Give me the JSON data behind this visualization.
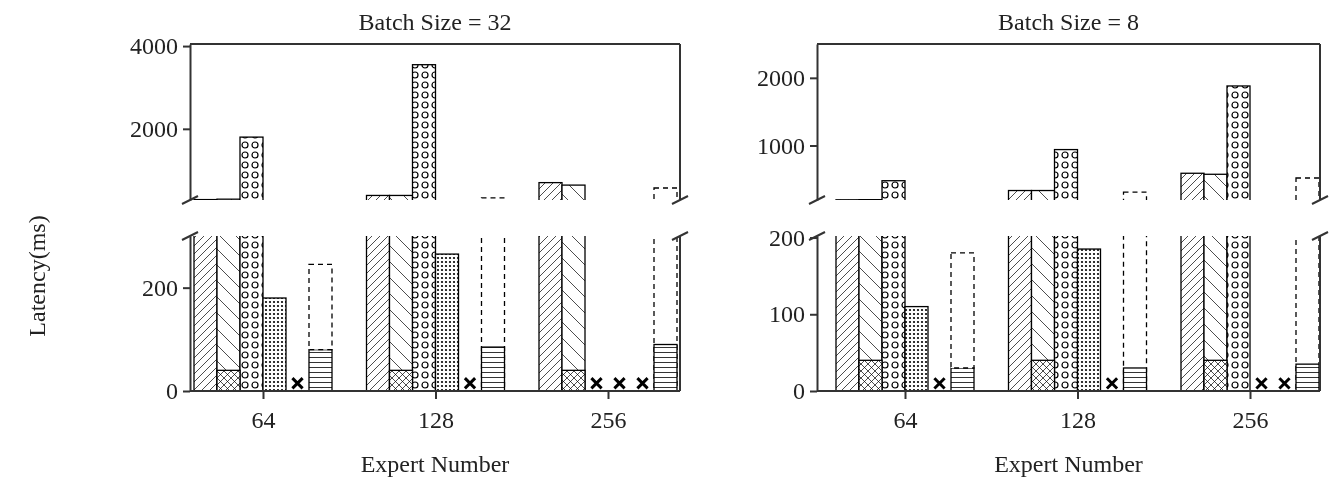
{
  "chart_data": [
    {
      "type": "bar",
      "title": "Batch Size = 32",
      "categories": [
        "64",
        "128",
        "256"
      ],
      "ylim": [
        280,
        4050
      ],
      "yticks": [
        2000,
        4000
      ],
      "tick_labels": "y",
      "series": [
        {
          "color": "#000000",
          "values": [
            290,
            390,
            700
          ]
        },
        {
          "color": "#000000",
          "values": [
            300,
            390,
            640
          ]
        },
        {
          "color": "#000000",
          "values": [
            null,
            null,
            null
          ]
        },
        {
          "color": "#000000",
          "values": [
            1800,
            3550,
            null
          ]
        },
        {
          "color": "#000000",
          "values": [
            null,
            null,
            null
          ]
        },
        {
          "color": "#000000",
          "values": [
            null,
            null,
            null
          ]
        },
        {
          "color": "#000000",
          "values": [
            null,
            330,
            570
          ],
          "line_style": "dashed"
        }
      ]
    },
    {
      "type": "bar",
      "xlabel": "Expert Number",
      "ylabel": "Latency(ms)",
      "categories": [
        "64",
        "128",
        "256"
      ],
      "ylim": [
        0,
        300
      ],
      "yticks": [
        0,
        200
      ],
      "series": [
        {
          "color": "#000000",
          "values": [
            null,
            null,
            null
          ]
        },
        {
          "color": "#000000",
          "values": [
            null,
            null,
            null
          ]
        },
        {
          "color": "#000000",
          "values": [
            40,
            40,
            40
          ]
        },
        {
          "color": "#000000",
          "values": [
            null,
            null,
            null
          ]
        },
        {
          "color": "#000000",
          "values": [
            180,
            265,
            null
          ]
        },
        {
          "color": "#000000",
          "values": [
            80,
            85,
            90
          ]
        },
        {
          "color": "#000000",
          "base": [
            80,
            null,
            null
          ],
          "values": [
            165,
            null,
            null
          ],
          "line_style": "dashed"
        },
        {
          "type": "scatter",
          "marker": "cross",
          "color": "#000000",
          "x": [
            "64",
            "128",
            "256",
            "256",
            "256"
          ],
          "values": [
            15,
            15,
            15,
            15,
            15
          ]
        }
      ]
    },
    {
      "type": "bar",
      "title": "Batch Size = 8",
      "categories": [
        "64",
        "128",
        "256"
      ],
      "ylim": [
        195,
        2500
      ],
      "yticks": [
        1000,
        2000
      ],
      "tick_labels": "y",
      "series": [
        {
          "color": "#000000",
          "values": [
            198,
            335,
            590
          ]
        },
        {
          "color": "#000000",
          "values": [
            200,
            335,
            575
          ]
        },
        {
          "color": "#000000",
          "values": [
            null,
            null,
            null
          ]
        },
        {
          "color": "#000000",
          "values": [
            480,
            940,
            1880
          ]
        },
        {
          "color": "#000000",
          "values": [
            null,
            null,
            null
          ]
        },
        {
          "color": "#000000",
          "values": [
            null,
            null,
            null
          ]
        },
        {
          "color": "#000000",
          "values": [
            null,
            310,
            520
          ],
          "line_style": "dashed"
        }
      ]
    },
    {
      "type": "bar",
      "xlabel": "Expert Number",
      "categories": [
        "64",
        "128",
        "256"
      ],
      "ylim": [
        0,
        202
      ],
      "yticks": [
        0,
        100,
        200
      ],
      "series": [
        {
          "color": "#000000",
          "values": [
            null,
            null,
            null
          ]
        },
        {
          "color": "#000000",
          "values": [
            null,
            null,
            null
          ]
        },
        {
          "color": "#000000",
          "values": [
            40,
            40,
            40
          ]
        },
        {
          "color": "#000000",
          "values": [
            null,
            null,
            null
          ]
        },
        {
          "color": "#000000",
          "values": [
            110,
            185,
            null
          ]
        },
        {
          "color": "#000000",
          "values": [
            30,
            30,
            35
          ]
        },
        {
          "color": "#000000",
          "base": [
            30,
            null,
            null
          ],
          "values": [
            150,
            null,
            null
          ],
          "line_style": "dashed"
        },
        {
          "type": "scatter",
          "marker": "cross",
          "color": "#000000",
          "x": [
            "64",
            "128",
            "256",
            "256"
          ],
          "values": [
            10,
            10,
            10,
            10
          ]
        }
      ]
    }
  ]
}
